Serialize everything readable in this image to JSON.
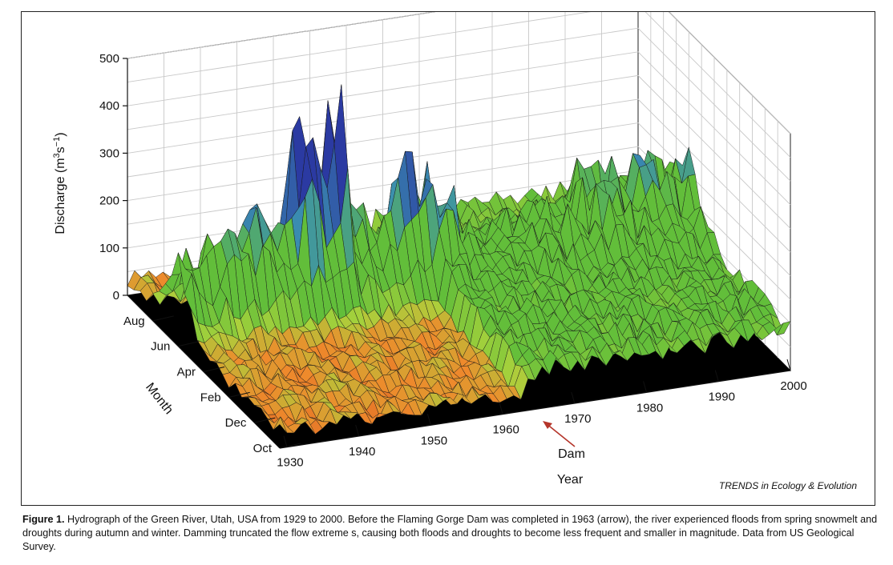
{
  "chart_data": {
    "type": "surface3d",
    "title": "",
    "zlabel": "Discharge (m³s⁻¹)",
    "zlabel_parts": [
      "Discharge (m",
      "3",
      "s",
      "−1",
      ")"
    ],
    "zlim": [
      0,
      500
    ],
    "zticks": [
      "0",
      "100",
      "200",
      "300",
      "400",
      "500"
    ],
    "ylabel": "Month",
    "month_ticks": [
      "Oct",
      "Dec",
      "Feb",
      "Apr",
      "Jun",
      "Aug"
    ],
    "xlabel": "Year",
    "year_ticks": [
      "1930",
      "1940",
      "1950",
      "1960",
      "1970",
      "1980",
      "1990",
      "2000"
    ],
    "xlim": [
      1929,
      2000
    ],
    "annotation": {
      "text": "Dam",
      "year": 1963
    },
    "approx_annual_peaks": [
      {
        "year": 1930,
        "value": 185
      },
      {
        "year": 1932,
        "value": 150
      },
      {
        "year": 1935,
        "value": 210
      },
      {
        "year": 1937,
        "value": 230
      },
      {
        "year": 1938,
        "value": 215
      },
      {
        "year": 1941,
        "value": 240
      },
      {
        "year": 1943,
        "value": 175
      },
      {
        "year": 1944,
        "value": 270
      },
      {
        "year": 1947,
        "value": 420
      },
      {
        "year": 1949,
        "value": 350
      },
      {
        "year": 1952,
        "value": 470
      },
      {
        "year": 1953,
        "value": 230
      },
      {
        "year": 1957,
        "value": 200
      },
      {
        "year": 1962,
        "value": 300
      },
      {
        "year": 1965,
        "value": 340
      },
      {
        "year": 1969,
        "value": 220
      },
      {
        "year": 1971,
        "value": 170
      },
      {
        "year": 1983,
        "value": 230
      },
      {
        "year": 1986,
        "value": 290
      }
    ]
  },
  "credit": "TRENDS in Ecology & Evolution",
  "caption": {
    "label": "Figure 1.",
    "text": " Hydrograph of the Green River, Utah, USA from 1929 to 2000. Before the Flaming Gorge Dam was completed in 1963 (arrow), the river experienced floods from spring snowmelt and droughts during autumn and winter. Damming truncated the flow extreme s, causing both floods and droughts to become less frequent and smaller in magnitude. Data from US Geological Survey."
  },
  "colors": {
    "low": "#c9361a",
    "mid_low": "#ee8a2c",
    "mid": "#a9d23c",
    "green": "#62be3a",
    "high": "#3b8fb0",
    "peak": "#2b3aa2",
    "wall_line": "#c8c8c8",
    "floor": "#000000",
    "arrow": "#b5352a"
  }
}
